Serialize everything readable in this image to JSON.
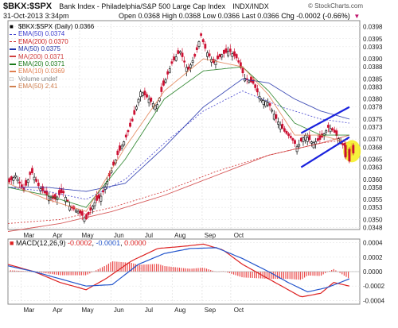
{
  "header": {
    "symbol": "$BKX:$SPX",
    "description": "Bank Index - Philadelphia/S&P 500 Large Cap Index",
    "exchange": "INDX/INDX",
    "date": "31-Oct-2013 3:34pm",
    "open": "Open 0.0368",
    "high": "High 0.0368",
    "low": "Low 0.0366",
    "last": "Last 0.0366",
    "chg": "Chg -0.0002 (-0.66%)",
    "credit": "© StockCharts.com"
  },
  "legend": [
    {
      "symbol": "■",
      "text": "$BKX:$SPX (Daily) 0.0366",
      "color": "#000000",
      "style": "square"
    },
    {
      "symbol": "",
      "text": "EMA(50) 0.0374",
      "color": "#3c3ccc",
      "style": "dash"
    },
    {
      "symbol": "",
      "text": "EMA(200) 0.0370",
      "color": "#cc2222",
      "style": "dash"
    },
    {
      "symbol": "",
      "text": "MA(50) 0.0375",
      "color": "#2233aa",
      "style": "solid"
    },
    {
      "symbol": "",
      "text": "MA(200) 0.0371",
      "color": "#d04040",
      "style": "solid"
    },
    {
      "symbol": "",
      "text": "EMA(20) 0.0371",
      "color": "#1a7a1a",
      "style": "solid"
    },
    {
      "symbol": "",
      "text": "EMA(10) 0.0369",
      "color": "#e07f50",
      "style": "solid"
    },
    {
      "symbol": "",
      "text": "Volume undef",
      "color": "#888888",
      "style": "box"
    },
    {
      "symbol": "",
      "text": "EMA(50) 2.41",
      "color": "#d08050",
      "style": "solid"
    }
  ],
  "macd_legend": {
    "label": "MACD(12,26,9)",
    "v1": "-0.0002",
    "v2": "-0.0001",
    "v3": "0.0000",
    "colors": {
      "macd": "#dd2222",
      "signal": "#2255cc",
      "hist": "#dd2222"
    }
  },
  "chart_data": [
    {
      "type": "candlestick",
      "title": "$BKX:$SPX Bank Index - Philadelphia/S&P 500 Large Cap Index",
      "x_labels": [
        "Mar",
        "Apr",
        "May",
        "Jun",
        "Jul",
        "Aug",
        "Sep",
        "Oct"
      ],
      "ylim": [
        0.03475,
        0.03995
      ],
      "y_ticks": [
        0.0348,
        0.035,
        0.0353,
        0.0355,
        0.0358,
        0.036,
        0.0363,
        0.0365,
        0.0368,
        0.037,
        0.0373,
        0.0375,
        0.0378,
        0.038,
        0.0383,
        0.0385,
        0.0388,
        0.039,
        0.0393,
        0.0395,
        0.0398
      ],
      "close_path": [
        [
          0,
          0.0359
        ],
        [
          6,
          0.0361
        ],
        [
          12,
          0.0357
        ],
        [
          18,
          0.0362
        ],
        [
          24,
          0.0358
        ],
        [
          30,
          0.0356
        ],
        [
          36,
          0.0355
        ],
        [
          42,
          0.0357
        ],
        [
          48,
          0.0353
        ],
        [
          54,
          0.0352
        ],
        [
          60,
          0.035
        ],
        [
          66,
          0.0354
        ],
        [
          72,
          0.0356
        ],
        [
          78,
          0.0361
        ],
        [
          84,
          0.0366
        ],
        [
          90,
          0.037
        ],
        [
          96,
          0.0375
        ],
        [
          102,
          0.0382
        ],
        [
          108,
          0.038
        ],
        [
          114,
          0.0378
        ],
        [
          120,
          0.0384
        ],
        [
          126,
          0.0389
        ],
        [
          132,
          0.0392
        ],
        [
          138,
          0.0387
        ],
        [
          144,
          0.0391
        ],
        [
          148,
          0.0396
        ],
        [
          152,
          0.0392
        ],
        [
          158,
          0.0389
        ],
        [
          164,
          0.0391
        ],
        [
          170,
          0.0392
        ],
        [
          176,
          0.039
        ],
        [
          182,
          0.0385
        ],
        [
          188,
          0.0384
        ],
        [
          194,
          0.038
        ],
        [
          200,
          0.0379
        ],
        [
          206,
          0.0375
        ],
        [
          212,
          0.0372
        ],
        [
          218,
          0.037
        ],
        [
          222,
          0.0368
        ],
        [
          228,
          0.0371
        ],
        [
          234,
          0.0369
        ],
        [
          240,
          0.037
        ],
        [
          246,
          0.0373
        ],
        [
          250,
          0.0372
        ],
        [
          254,
          0.037
        ],
        [
          258,
          0.0368
        ],
        [
          262,
          0.0367
        ]
      ],
      "series": [
        {
          "name": "EMA(50)",
          "color": "#3c3ccc",
          "dashed": true,
          "points": [
            [
              0,
              0.0358
            ],
            [
              30,
              0.0357
            ],
            [
              60,
              0.0355
            ],
            [
              90,
              0.036
            ],
            [
              120,
              0.0369
            ],
            [
              150,
              0.0377
            ],
            [
              180,
              0.0382
            ],
            [
              210,
              0.0378
            ],
            [
              240,
              0.0375
            ],
            [
              262,
              0.0374
            ]
          ]
        },
        {
          "name": "EMA(200)",
          "color": "#cc2222",
          "dashed": true,
          "points": [
            [
              0,
              0.0349
            ],
            [
              40,
              0.035
            ],
            [
              80,
              0.0353
            ],
            [
              120,
              0.0357
            ],
            [
              160,
              0.0362
            ],
            [
              200,
              0.0366
            ],
            [
              240,
              0.0369
            ],
            [
              262,
              0.037
            ]
          ]
        },
        {
          "name": "MA(50)",
          "color": "#2233aa",
          "dashed": false,
          "points": [
            [
              0,
              0.0358
            ],
            [
              30,
              0.0358
            ],
            [
              60,
              0.0357
            ],
            [
              90,
              0.0359
            ],
            [
              120,
              0.0368
            ],
            [
              150,
              0.0378
            ],
            [
              180,
              0.0385
            ],
            [
              200,
              0.0384
            ],
            [
              220,
              0.038
            ],
            [
              240,
              0.0377
            ],
            [
              262,
              0.0375
            ]
          ]
        },
        {
          "name": "MA(200)",
          "color": "#d04040",
          "dashed": false,
          "points": [
            [
              0,
              0.0347
            ],
            [
              40,
              0.0349
            ],
            [
              80,
              0.0352
            ],
            [
              120,
              0.0356
            ],
            [
              160,
              0.0361
            ],
            [
              200,
              0.0366
            ],
            [
              240,
              0.0369
            ],
            [
              262,
              0.0371
            ]
          ]
        },
        {
          "name": "EMA(20)",
          "color": "#1a7a1a",
          "dashed": false,
          "points": [
            [
              0,
              0.0358
            ],
            [
              30,
              0.0356
            ],
            [
              60,
              0.0353
            ],
            [
              90,
              0.0365
            ],
            [
              120,
              0.038
            ],
            [
              150,
              0.0387
            ],
            [
              180,
              0.0388
            ],
            [
              200,
              0.0382
            ],
            [
              220,
              0.0374
            ],
            [
              240,
              0.0371
            ],
            [
              262,
              0.0371
            ]
          ]
        },
        {
          "name": "EMA(10)",
          "color": "#e07f50",
          "dashed": false,
          "points": [
            [
              0,
              0.0359
            ],
            [
              30,
              0.0355
            ],
            [
              60,
              0.0352
            ],
            [
              90,
              0.0368
            ],
            [
              120,
              0.0382
            ],
            [
              150,
              0.039
            ],
            [
              180,
              0.0388
            ],
            [
              200,
              0.0381
            ],
            [
              220,
              0.0371
            ],
            [
              240,
              0.0371
            ],
            [
              262,
              0.0369
            ]
          ]
        }
      ],
      "annotations": {
        "channel_upper": [
          [
            225,
            0.03715
          ],
          [
            262,
            0.0378
          ]
        ],
        "channel_lower": [
          [
            225,
            0.0363
          ],
          [
            262,
            0.03705
          ]
        ],
        "highlight_center": [
          264,
          0.0367
        ]
      }
    },
    {
      "type": "line",
      "title": "MACD(12,26,9)",
      "ylim": [
        -0.00045,
        0.00045
      ],
      "y_ticks": [
        0.0004,
        0.0002,
        0.0,
        -0.0002,
        -0.0004
      ],
      "series": [
        {
          "name": "MACD",
          "color": "#dd2222",
          "points": [
            [
              0,
              0.0001
            ],
            [
              20,
              0.0
            ],
            [
              40,
              -0.00015
            ],
            [
              60,
              -0.00025
            ],
            [
              75,
              -0.0001
            ],
            [
              95,
              0.00015
            ],
            [
              115,
              0.00032
            ],
            [
              135,
              0.00035
            ],
            [
              150,
              0.00038
            ],
            [
              165,
              0.0003
            ],
            [
              180,
              0.0001
            ],
            [
              195,
              -5e-05
            ],
            [
              210,
              -0.0002
            ],
            [
              225,
              -0.00035
            ],
            [
              240,
              -0.0003
            ],
            [
              250,
              -0.00015
            ],
            [
              262,
              -0.0002
            ]
          ]
        },
        {
          "name": "Signal",
          "color": "#2255cc",
          "points": [
            [
              0,
              8e-05
            ],
            [
              20,
              0.0
            ],
            [
              40,
              -0.0001
            ],
            [
              60,
              -0.0002
            ],
            [
              80,
              -0.00018
            ],
            [
              100,
              0.0001
            ],
            [
              120,
              0.00025
            ],
            [
              140,
              0.00032
            ],
            [
              160,
              0.00033
            ],
            [
              180,
              0.00018
            ],
            [
              200,
              0.0
            ],
            [
              215,
              -0.00015
            ],
            [
              230,
              -0.00028
            ],
            [
              245,
              -0.00022
            ],
            [
              262,
              -0.0001
            ]
          ]
        }
      ]
    }
  ]
}
